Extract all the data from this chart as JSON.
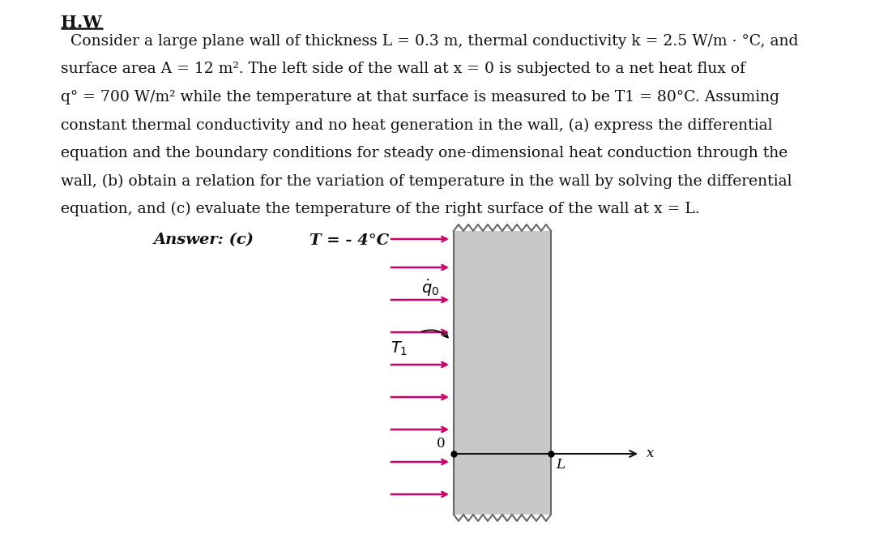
{
  "background_color": "#ffffff",
  "title": "H.W",
  "wall_color": "#c8c8c8",
  "wall_edge_color": "#666666",
  "arrow_color": "#cc0066",
  "axis_color": "#111111",
  "text_color": "#111111",
  "lines": [
    "  Consider a large plane wall of thickness L = 0.3 m, thermal conductivity k = 2.5 W/m · °C, and",
    "surface area A = 12 m². The left side of the wall at x = 0 is subjected to a net heat flux of",
    "q° = 700 W/m² while the temperature at that surface is measured to be T1 = 80°C. Assuming",
    "constant thermal conductivity and no heat generation in the wall, (a) express the differential",
    "equation and the boundary conditions for steady one-dimensional heat conduction through the",
    "wall, (b) obtain a relation for the variation of temperature in the wall by solving the differential",
    "equation, and (c) evaluate the temperature of the right surface of the wall at x = L."
  ],
  "answer_text": "Answer: (c)",
  "answer_value": "    T = - 4°C",
  "fig_width": 10.8,
  "fig_height": 6.59,
  "dpi": 100,
  "font_size_body": 13.5,
  "font_size_title": 15,
  "font_size_diagram": 13
}
